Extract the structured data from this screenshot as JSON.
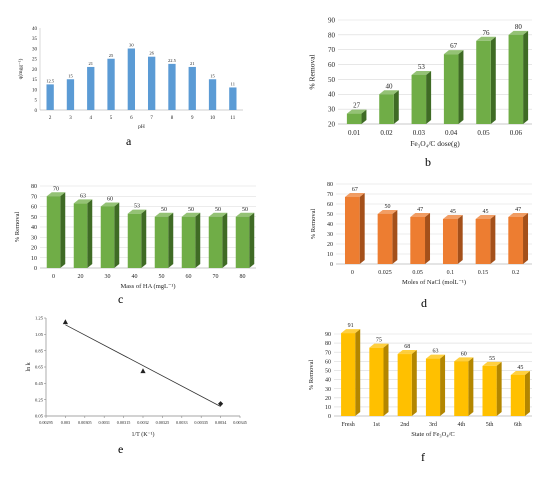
{
  "panels": [
    {
      "id": "a",
      "label": "a",
      "chart_data": {
        "type": "bar",
        "categories": [
          "2",
          "3",
          "4",
          "5",
          "6",
          "7",
          "8",
          "9",
          "10",
          "11"
        ],
        "values": [
          12.5,
          15,
          21,
          25,
          30,
          26,
          22.5,
          21,
          15,
          11
        ],
        "data_labels": [
          "12.5",
          "15",
          "21",
          "25",
          "30",
          "26",
          "22.5",
          "21",
          "15",
          "11"
        ],
        "xlabel": "pH",
        "ylabel": "q(mgg⁻¹)",
        "ylim": [
          0,
          40
        ],
        "yticks": [
          0,
          5,
          10,
          15,
          20,
          25,
          30,
          35,
          40
        ],
        "grid": false,
        "style": "flat",
        "color": "#5b9bd5"
      }
    },
    {
      "id": "b",
      "label": "b",
      "chart_data": {
        "type": "bar",
        "categories": [
          "0.01",
          "0.02",
          "0.03",
          "0.04",
          "0.05",
          "0.06"
        ],
        "values": [
          27,
          40,
          53,
          67,
          76,
          80
        ],
        "data_labels": [
          "27",
          "40",
          "53",
          "67",
          "76",
          "80"
        ],
        "xlabel": "Fe₃O₄/C  dose(g)",
        "ylabel": "% Removal",
        "ylim": [
          20,
          90
        ],
        "yticks": [
          20,
          30,
          40,
          50,
          60,
          70,
          80,
          90
        ],
        "grid": true,
        "style": "3d",
        "color": "#70ad47",
        "color_dark": "#3f6b25"
      }
    },
    {
      "id": "c",
      "label": "c",
      "chart_data": {
        "type": "bar",
        "categories": [
          "0",
          "20",
          "30",
          "40",
          "50",
          "60",
          "70",
          "80"
        ],
        "values": [
          70,
          63,
          60,
          53,
          50,
          50,
          50,
          50
        ],
        "data_labels": [
          "70",
          "63",
          "60",
          "53",
          "50",
          "50",
          "50",
          "50"
        ],
        "xlabel": "Mass of HA  (mgL⁻¹)",
        "ylabel": "% Removal",
        "ylim": [
          0,
          80
        ],
        "yticks": [
          0,
          10,
          20,
          30,
          40,
          50,
          60,
          70,
          80
        ],
        "grid": true,
        "style": "3d",
        "color": "#70ad47",
        "color_dark": "#3f6b25"
      }
    },
    {
      "id": "d",
      "label": "d",
      "chart_data": {
        "type": "bar",
        "categories": [
          "0",
          "0.025",
          "0.05",
          "0.1",
          "0.15",
          "0.2"
        ],
        "values": [
          67,
          50,
          47,
          45,
          45,
          47
        ],
        "data_labels": [
          "67",
          "50",
          "47",
          "45",
          "45",
          "47"
        ],
        "xlabel": "Moles of NaCl  (molL⁻¹)",
        "ylabel": "% Removal",
        "ylim": [
          0,
          80
        ],
        "yticks": [
          0,
          10,
          20,
          30,
          40,
          50,
          60,
          70,
          80
        ],
        "grid": true,
        "style": "3d",
        "color": "#ed7d31",
        "color_dark": "#a4501a"
      }
    },
    {
      "id": "e",
      "label": "e",
      "chart_data": {
        "type": "scatter",
        "x": [
          0.003,
          0.0032,
          0.0034
        ],
        "y": [
          1.2,
          0.6,
          0.2
        ],
        "markers": [
          "triangle",
          "triangle",
          "diamond"
        ],
        "trendline": true,
        "xlabel": "1/T (K⁻¹)",
        "ylabel": "ln k",
        "xlim": [
          0.00295,
          0.00345
        ],
        "ylim": [
          0.05,
          1.25
        ],
        "xticks": [
          "0.00295",
          "0.003",
          "0.00305",
          "0.0031",
          "0.00315",
          "0.0032",
          "0.00325",
          "0.0033",
          "0.00335",
          "0.0034",
          "0.00345"
        ],
        "yticks": [
          "0.05",
          "0.25",
          "0.45",
          "0.65",
          "0.85",
          "1.05",
          "1.25"
        ],
        "grid": false
      }
    },
    {
      "id": "f",
      "label": "f",
      "chart_data": {
        "type": "bar",
        "categories": [
          "Fresh",
          "1st",
          "2nd",
          "3rd",
          "4th",
          "5th",
          "6th"
        ],
        "values": [
          91,
          75,
          68,
          63,
          60,
          55,
          45
        ],
        "data_labels": [
          "91",
          "75",
          "68",
          "63",
          "60",
          "55",
          "45"
        ],
        "xlabel": "State of Fe₃O₄/C",
        "ylabel": "% Removal",
        "ylim": [
          0,
          90
        ],
        "yticks": [
          0,
          10,
          20,
          30,
          40,
          50,
          60,
          70,
          80,
          90
        ],
        "grid": true,
        "style": "3d",
        "color": "#ffc000",
        "color_dark": "#b38600"
      }
    }
  ]
}
